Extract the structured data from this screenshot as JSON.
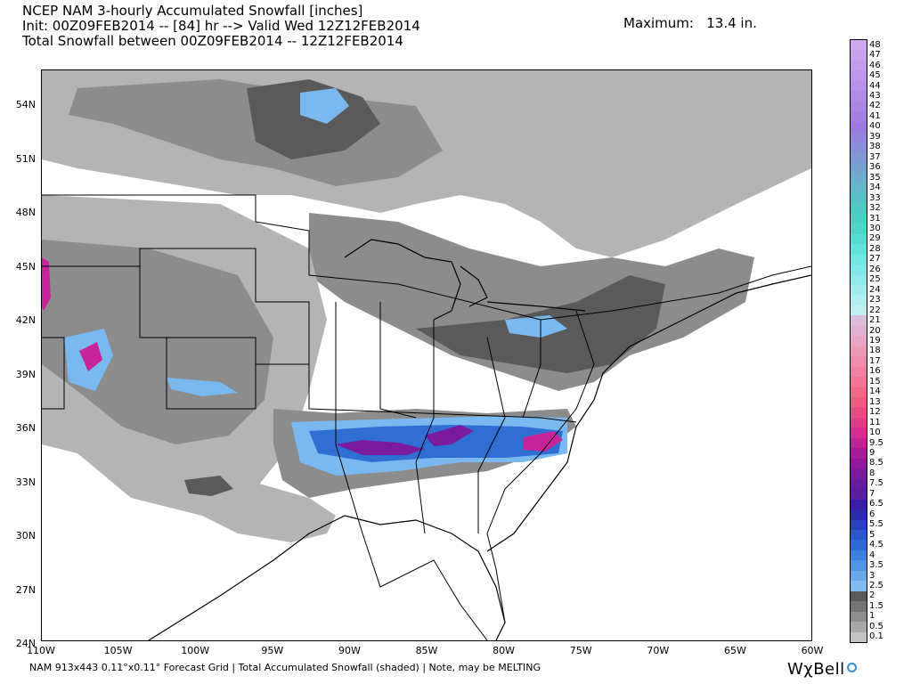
{
  "header": {
    "line1": "NCEP NAM 3-hourly Accumulated Snowfall [inches]",
    "line2": "Init: 00Z09FEB2014 -- [84] hr --> Valid Wed 12Z12FEB2014",
    "line3": "Total Snowfall between 00Z09FEB2014 -- 12Z12FEB2014",
    "maximum": "Maximum:   13.4 in."
  },
  "map": {
    "lat_labels": [
      "54N",
      "51N",
      "48N",
      "45N",
      "42N",
      "39N",
      "36N",
      "33N",
      "30N",
      "27N",
      "24N"
    ],
    "lon_labels": [
      "110W",
      "105W",
      "100W",
      "95W",
      "90W",
      "85W",
      "80W",
      "75W",
      "70W",
      "65W",
      "60W"
    ],
    "colors": {
      "land": "#ffffff",
      "border": "#000000",
      "light_gray": "#b4b4b4",
      "mid_gray": "#8c8c8c",
      "dark_gray": "#5a5a5a",
      "light_blue": "#7ab8f0",
      "blue": "#2f6fd4",
      "purple": "#7a1a9c",
      "magenta": "#c8249a"
    }
  },
  "colorbar": {
    "labels": [
      "48",
      "47",
      "46",
      "45",
      "44",
      "43",
      "42",
      "41",
      "40",
      "39",
      "38",
      "37",
      "36",
      "35",
      "34",
      "33",
      "32",
      "31",
      "30",
      "29",
      "28",
      "27",
      "26",
      "25",
      "24",
      "23",
      "22",
      "21",
      "20",
      "19",
      "18",
      "17",
      "16",
      "15",
      "14",
      "13",
      "12",
      "11",
      "10",
      "9.5",
      "9",
      "8.5",
      "8",
      "7.5",
      "7",
      "6.5",
      "6",
      "5.5",
      "5",
      "4.5",
      "4",
      "3.5",
      "3",
      "2.5",
      "2",
      "1.5",
      "1",
      "0.5",
      "0.1"
    ],
    "colors": [
      "#cfa8f0",
      "#c9a2ee",
      "#c39cec",
      "#bd96ea",
      "#b790e8",
      "#b18ae6",
      "#ab84e4",
      "#a57ee2",
      "#9f78e0",
      "#9484dc",
      "#8a8ed8",
      "#8098d4",
      "#76a2d0",
      "#6caccc",
      "#62b6c8",
      "#58c0c4",
      "#4ecac0",
      "#48d0c0",
      "#4cd6c8",
      "#56dcd0",
      "#62e2d8",
      "#70e6e0",
      "#80e8e6",
      "#90eaea",
      "#a0ecee",
      "#b0eef0",
      "#c0f0f4",
      "#dcbcdc",
      "#e2b0d0",
      "#e8a4c4",
      "#ee98b8",
      "#f08cac",
      "#f280a0",
      "#f47494",
      "#f66888",
      "#f05c80",
      "#e84c84",
      "#e03c8a",
      "#d82c90",
      "#c02494",
      "#a81c98",
      "#90189c",
      "#7a1a9c",
      "#6a1c9e",
      "#5a1ea0",
      "#3a1ea8",
      "#2a2ab0",
      "#2a40c0",
      "#2c56cc",
      "#2e6ad4",
      "#3a80dc",
      "#4e94e2",
      "#66a8e8",
      "#80bcee",
      "#5a5a5a",
      "#747474",
      "#8e8e8e",
      "#a8a8a8",
      "#c4c4c4"
    ]
  },
  "footer": {
    "text": "NAM 913x443 0.11°x0.11° Forecast Grid | Total Accumulated Snowfall (shaded) | Note, may be MELTING",
    "brand": "WχBell"
  }
}
